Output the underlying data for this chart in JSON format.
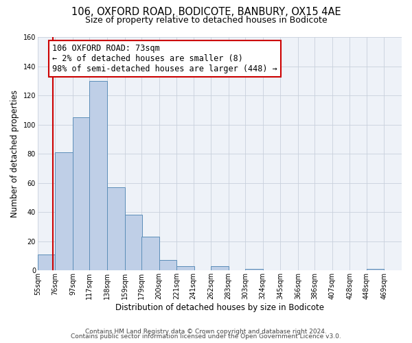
{
  "title": "106, OXFORD ROAD, BODICOTE, BANBURY, OX15 4AE",
  "subtitle": "Size of property relative to detached houses in Bodicote",
  "xlabel": "Distribution of detached houses by size in Bodicote",
  "ylabel": "Number of detached properties",
  "bin_labels": [
    "55sqm",
    "76sqm",
    "97sqm",
    "117sqm",
    "138sqm",
    "159sqm",
    "179sqm",
    "200sqm",
    "221sqm",
    "241sqm",
    "262sqm",
    "283sqm",
    "303sqm",
    "324sqm",
    "345sqm",
    "366sqm",
    "386sqm",
    "407sqm",
    "428sqm",
    "448sqm",
    "469sqm"
  ],
  "bar_heights": [
    11,
    81,
    105,
    130,
    57,
    38,
    23,
    7,
    3,
    0,
    3,
    0,
    1,
    0,
    0,
    0,
    0,
    0,
    0,
    1,
    0
  ],
  "bar_color": "#BFCFE7",
  "bar_edge_color": "#5B8DB8",
  "ylim": [
    0,
    160
  ],
  "yticks": [
    0,
    20,
    40,
    60,
    80,
    100,
    120,
    140,
    160
  ],
  "bin_edges_values": [
    55,
    76,
    97,
    117,
    138,
    159,
    179,
    200,
    221,
    241,
    262,
    283,
    303,
    324,
    345,
    366,
    386,
    407,
    428,
    448,
    469
  ],
  "bin_width": 21,
  "annotation_title": "106 OXFORD ROAD: 73sqm",
  "annotation_line1": "← 2% of detached houses are smaller (8)",
  "annotation_line2": "98% of semi-detached houses are larger (448) →",
  "annotation_box_color": "#ffffff",
  "annotation_box_edge_color": "#cc0000",
  "red_line_x": 73,
  "footer1": "Contains HM Land Registry data © Crown copyright and database right 2024.",
  "footer2": "Contains public sector information licensed under the Open Government Licence v3.0.",
  "bg_color": "#ffffff",
  "plot_bg_color": "#eef2f8",
  "grid_color": "#c8d0dc",
  "title_fontsize": 10.5,
  "subtitle_fontsize": 9,
  "axis_label_fontsize": 8.5,
  "tick_fontsize": 7,
  "annotation_fontsize": 8.5,
  "footer_fontsize": 6.5
}
